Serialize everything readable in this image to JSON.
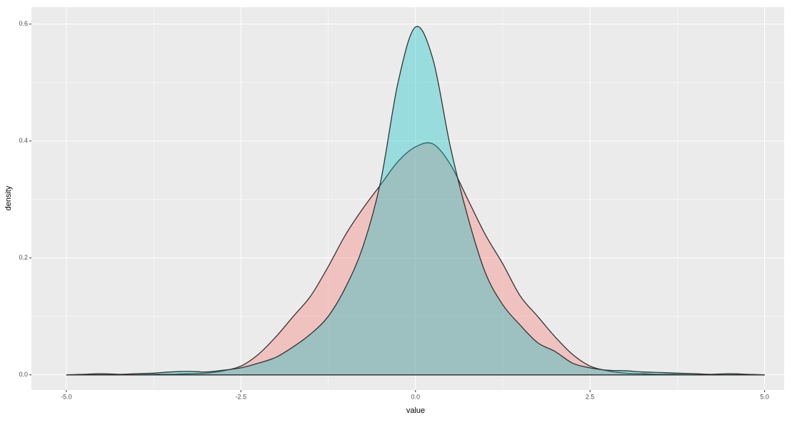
{
  "chart_data": {
    "type": "density",
    "x_label": "value",
    "y_label": "density",
    "x": [
      -5,
      -4.75,
      -4.5,
      -4.25,
      -4,
      -3.75,
      -3.5,
      -3.25,
      -3,
      -2.75,
      -2.5,
      -2.25,
      -2,
      -1.75,
      -1.5,
      -1.25,
      -1,
      -0.75,
      -0.5,
      -0.25,
      0,
      0.25,
      0.5,
      0.75,
      1,
      1.25,
      1.5,
      1.75,
      2,
      2.25,
      2.5,
      2.75,
      3,
      3.25,
      3.5,
      3.75,
      4,
      4.25,
      4.5,
      4.75,
      5
    ],
    "series": [
      {
        "color": "#F8766D",
        "values": [
          0,
          0,
          0,
          0,
          0,
          0.001,
          0.001,
          0.002,
          0.003,
          0.007,
          0.015,
          0.035,
          0.065,
          0.1,
          0.135,
          0.185,
          0.24,
          0.285,
          0.325,
          0.365,
          0.39,
          0.395,
          0.36,
          0.3,
          0.24,
          0.19,
          0.135,
          0.1,
          0.065,
          0.035,
          0.015,
          0.007,
          0.003,
          0.002,
          0.001,
          0.001,
          0,
          0,
          0,
          0,
          0
        ]
      },
      {
        "color": "#00BFC4",
        "values": [
          0,
          0.001,
          0.002,
          0.001,
          0.002,
          0.003,
          0.005,
          0.006,
          0.005,
          0.008,
          0.012,
          0.02,
          0.03,
          0.048,
          0.07,
          0.1,
          0.15,
          0.22,
          0.33,
          0.5,
          0.595,
          0.54,
          0.39,
          0.27,
          0.175,
          0.12,
          0.085,
          0.055,
          0.04,
          0.02,
          0.012,
          0.008,
          0.007,
          0.005,
          0.004,
          0.003,
          0.002,
          0.001,
          0.002,
          0.001,
          0
        ]
      }
    ],
    "xlim": [
      -5.5,
      5.28
    ],
    "ylim": [
      -0.026,
      0.629
    ],
    "xticks": [
      {
        "value": -5,
        "label": "-5.0"
      },
      {
        "value": -2.5,
        "label": "-2.5"
      },
      {
        "value": 0,
        "label": "0.0"
      },
      {
        "value": 2.5,
        "label": "2.5"
      },
      {
        "value": 5,
        "label": "5.0"
      }
    ],
    "yticks": [
      {
        "value": 0,
        "label": "0.0"
      },
      0.2,
      0.4,
      0.6
    ],
    "grid": true,
    "fill_opacity": 0.35
  }
}
